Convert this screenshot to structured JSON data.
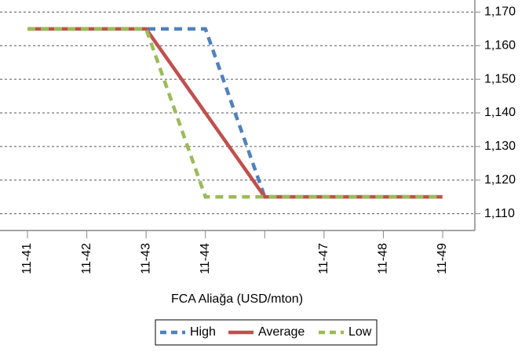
{
  "chart_data": {
    "type": "line",
    "x_label": "FCA Aliağa (USD/mton)",
    "categories": [
      "11-41",
      "11-42",
      "11-43",
      "11-44",
      null,
      "11-47",
      "11-48",
      "11-49"
    ],
    "series": [
      {
        "name": "High",
        "color": "#4f81bd",
        "dash": true,
        "values": [
          1165,
          1165,
          1165,
          1165,
          1115,
          1115,
          1115,
          1115
        ]
      },
      {
        "name": "Average",
        "color": "#c0504d",
        "dash": false,
        "values": [
          1165,
          1165,
          1165,
          1140,
          1115,
          1115,
          1115,
          1115
        ]
      },
      {
        "name": "Low",
        "color": "#9bbb59",
        "dash": true,
        "values": [
          1165,
          1165,
          1165,
          1115,
          1115,
          1115,
          1115,
          1115
        ]
      }
    ],
    "ylim": [
      1105,
      1175
    ],
    "yticks": [
      {
        "value": 1110,
        "label": "1,110"
      },
      {
        "value": 1120,
        "label": "1,120"
      },
      {
        "value": 1130,
        "label": "1,130"
      },
      {
        "value": 1140,
        "label": "1,140"
      },
      {
        "value": 1150,
        "label": "1,150"
      },
      {
        "value": 1160,
        "label": "1,160"
      },
      {
        "value": 1170,
        "label": "1,170"
      }
    ],
    "y_axis_side": "right",
    "grid": true,
    "legend": "bottom"
  }
}
